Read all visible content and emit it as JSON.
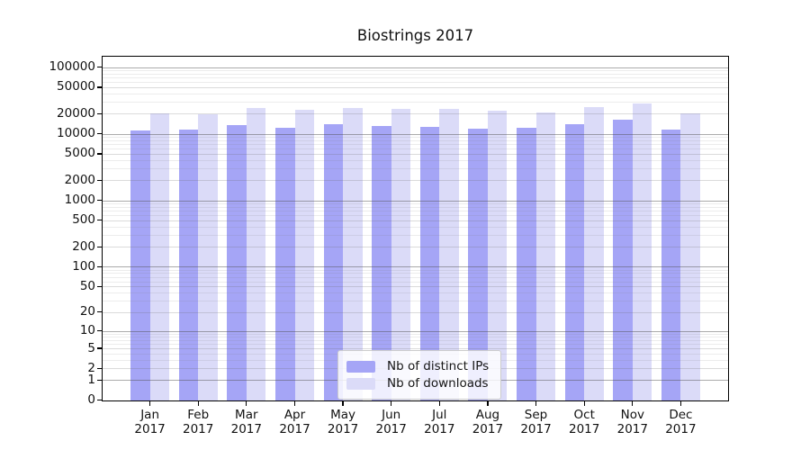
{
  "chart_data": {
    "type": "bar",
    "title": "Biostrings 2017",
    "categories": [
      "Jan",
      "Feb",
      "Mar",
      "Apr",
      "May",
      "Jun",
      "Jul",
      "Aug",
      "Sep",
      "Oct",
      "Nov",
      "Dec"
    ],
    "year_label": "2017",
    "series": [
      {
        "name": "Nb of distinct IPs",
        "color": "#a5a5f6",
        "values": [
          11200,
          11500,
          13700,
          12200,
          13800,
          13100,
          12600,
          12100,
          12200,
          14100,
          16200,
          11700
        ]
      },
      {
        "name": "Nb of downloads",
        "color": "#dbdbf8",
        "values": [
          20000,
          19600,
          24600,
          22900,
          24400,
          23700,
          23400,
          22100,
          20700,
          25400,
          28200,
          20000
        ]
      }
    ],
    "y_axis": {
      "scale": "log10(1+x)",
      "ticks": [
        0,
        1,
        2,
        5,
        10,
        20,
        50,
        100,
        200,
        500,
        1000,
        2000,
        5000,
        10000,
        20000,
        50000,
        100000
      ],
      "range_top": 147000
    },
    "xlabel": "",
    "ylabel": "",
    "grid": "horizontal major and minor gridlines",
    "legend_position": "inside bottom-center"
  }
}
